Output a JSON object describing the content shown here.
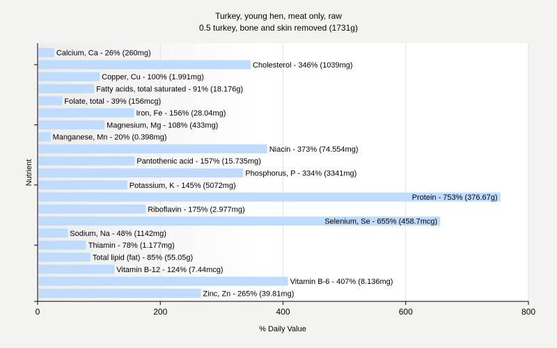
{
  "chart_data": {
    "type": "bar",
    "orientation": "horizontal",
    "title": "Turkey, young hen, meat only, raw",
    "subtitle": "0.5 turkey, bone and skin removed (1731g)",
    "xlabel": "% Daily Value",
    "ylabel": "Nutrient",
    "xlim": [
      0,
      800
    ],
    "xticks": [
      0,
      200,
      400,
      600,
      800
    ],
    "grid": true,
    "bar_color": "#bfdbfe",
    "categories": [
      "Calcium, Ca",
      "Cholesterol",
      "Copper, Cu",
      "Fatty acids, total saturated",
      "Folate, total",
      "Iron, Fe",
      "Magnesium, Mg",
      "Manganese, Mn",
      "Niacin",
      "Pantothenic acid",
      "Phosphorus, P",
      "Potassium, K",
      "Protein",
      "Riboflavin",
      "Selenium, Se",
      "Sodium, Na",
      "Thiamin",
      "Total lipid (fat)",
      "Vitamin B-12",
      "Vitamin B-6",
      "Zinc, Zn"
    ],
    "values": [
      26,
      346,
      100,
      91,
      39,
      156,
      108,
      20,
      373,
      157,
      334,
      145,
      753,
      175,
      655,
      48,
      78,
      85,
      124,
      407,
      265
    ],
    "labels": [
      "Calcium, Ca - 26% (260mg)",
      "Cholesterol - 346% (1039mg)",
      "Copper, Cu - 100% (1.991mg)",
      "Fatty acids, total saturated - 91% (18.176g)",
      "Folate, total - 39% (156mcg)",
      "Iron, Fe - 156% (28.04mg)",
      "Magnesium, Mg - 108% (433mg)",
      "Manganese, Mn - 20% (0.398mg)",
      "Niacin - 373% (74.554mg)",
      "Pantothenic acid - 157% (15.735mg)",
      "Phosphorus, P - 334% (3341mg)",
      "Potassium, K - 145% (5072mg)",
      "Protein - 753% (376.67g)",
      "Riboflavin - 175% (2.977mg)",
      "Selenium, Se - 655% (458.7mcg)",
      "Sodium, Na - 48% (1142mg)",
      "Thiamin - 78% (1.177mg)",
      "Total lipid (fat) - 85% (55.05g)",
      "Vitamin B-12 - 124% (7.44mcg)",
      "Vitamin B-6 - 407% (8.136mg)",
      "Zinc, Zn - 265% (39.81mg)"
    ]
  }
}
